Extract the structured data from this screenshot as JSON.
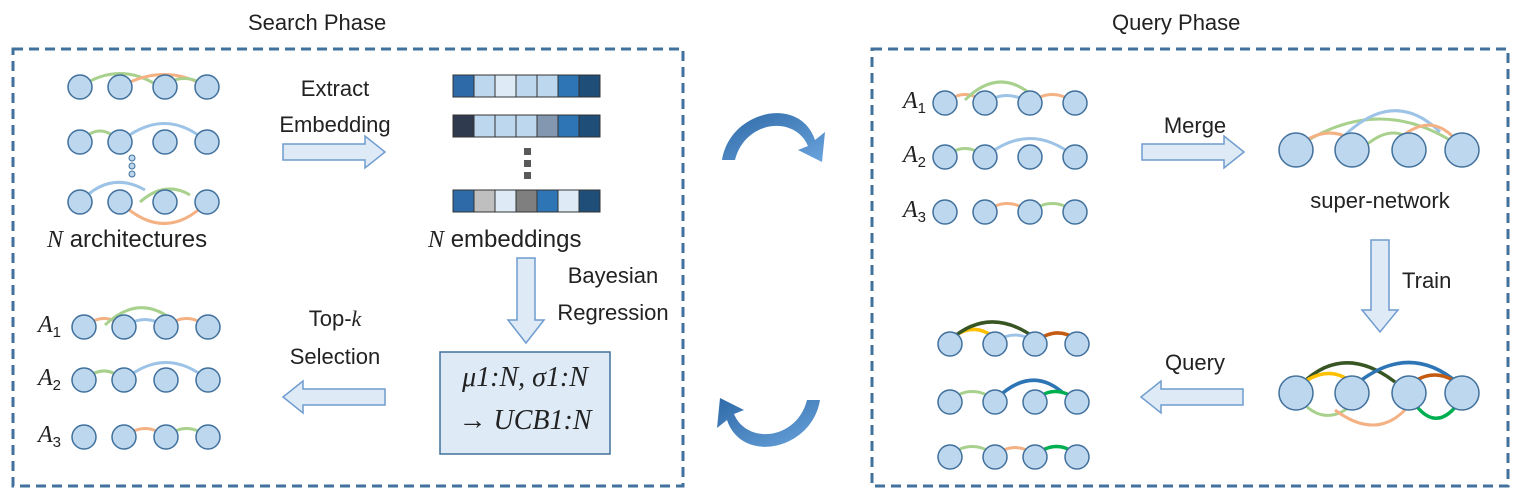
{
  "search_phase": {
    "title": "Search Phase",
    "extract_label_line1": "Extract",
    "extract_label_line2": "Embedding",
    "architectures_label": "architectures",
    "embeddings_label": "embeddings",
    "bayesian_line1": "Bayesian",
    "bayesian_line2": "Regression",
    "topk_line1": "Top-",
    "topk_k": "k",
    "topk_line2": "Selection",
    "ucb_line1": "μ1:N, σ1:N",
    "ucb_line2": "→ UCB1:N",
    "selected": [
      {
        "sym": "A",
        "idx": "1"
      },
      {
        "sym": "A",
        "idx": "2"
      },
      {
        "sym": "A",
        "idx": "3"
      }
    ],
    "n_symbol": "N"
  },
  "query_phase": {
    "title": "Query Phase",
    "merge_label": "Merge",
    "supernetwork_label": "super-network",
    "train_label": "Train",
    "query_label": "Query",
    "archs": [
      {
        "sym": "A",
        "idx": "1"
      },
      {
        "sym": "A",
        "idx": "2"
      },
      {
        "sym": "A",
        "idx": "3"
      }
    ]
  },
  "colors": {
    "frame": "#41719c",
    "node_fill": "#bdd7ee",
    "node_stroke": "#41719c",
    "arrow_fill": "#deebf7",
    "edge_green": "#a9d18e",
    "edge_orange": "#f4b183",
    "edge_blue": "#9dc3e6",
    "cycle_arrow": "#4a86c2"
  }
}
